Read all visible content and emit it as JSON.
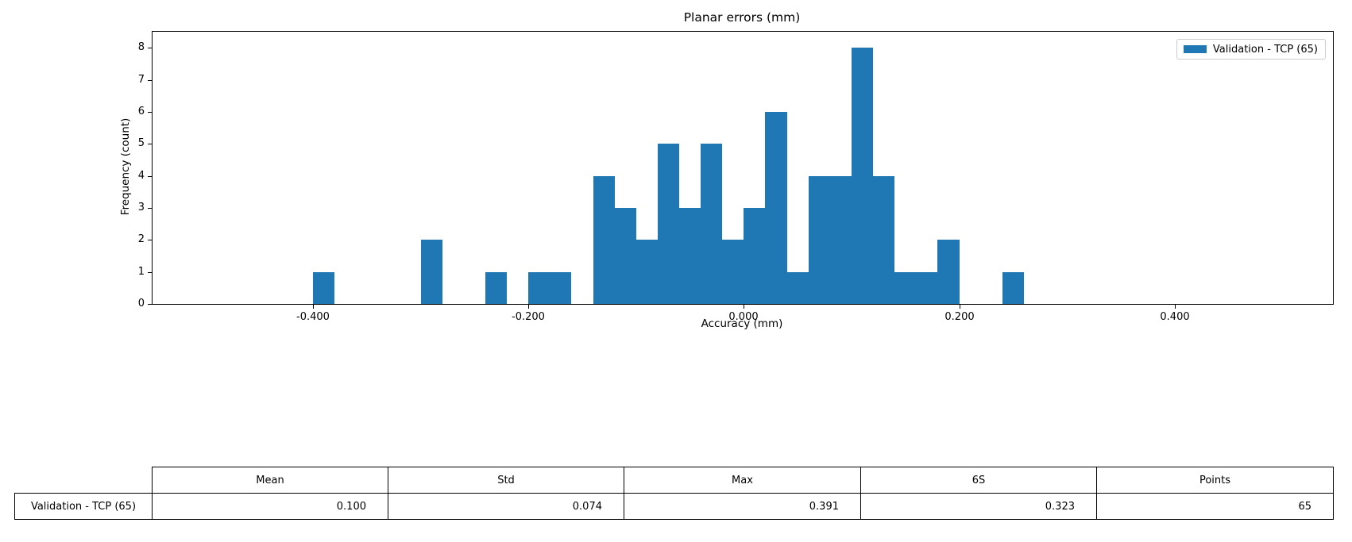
{
  "title": "Planar errors (mm)",
  "chart_data": {
    "type": "bar",
    "subtype": "histogram",
    "title": "Planar errors (mm)",
    "xlabel": "Accuracy (mm)",
    "ylabel": "Frequency (count)",
    "bin_start": -0.4,
    "bin_width": 0.02,
    "counts": [
      1,
      0,
      0,
      0,
      0,
      2,
      0,
      0,
      1,
      0,
      1,
      1,
      0,
      4,
      3,
      2,
      5,
      3,
      5,
      2,
      3,
      6,
      1,
      4,
      4,
      8,
      4,
      1,
      1,
      2,
      0,
      0,
      1
    ],
    "total_points": 65,
    "series_name": "Validation - TCP (65)",
    "bar_color": "#1f77b4",
    "xlim": [
      -0.549,
      0.547
    ],
    "ylim": [
      0,
      8.5
    ],
    "xticks": [
      {
        "value": -0.4,
        "label": "-0.400"
      },
      {
        "value": -0.2,
        "label": "-0.200"
      },
      {
        "value": 0.0,
        "label": "0.000"
      },
      {
        "value": 0.2,
        "label": "0.200"
      },
      {
        "value": 0.4,
        "label": "0.400"
      }
    ],
    "yticks": [
      {
        "value": 0,
        "label": "0"
      },
      {
        "value": 1,
        "label": "1"
      },
      {
        "value": 2,
        "label": "2"
      },
      {
        "value": 3,
        "label": "3"
      },
      {
        "value": 4,
        "label": "4"
      },
      {
        "value": 5,
        "label": "5"
      },
      {
        "value": 6,
        "label": "6"
      },
      {
        "value": 7,
        "label": "7"
      },
      {
        "value": 8,
        "label": "8"
      }
    ],
    "grid": false,
    "legend_position": "upper right"
  },
  "legend": {
    "label": "Validation - TCP (65)",
    "swatch_color": "#1f77b4",
    "border_color": "#cccccc"
  },
  "table": {
    "columns": [
      "Mean",
      "Std",
      "Max",
      "6S",
      "Points"
    ],
    "row_header": "Validation - TCP (65)",
    "values": [
      "0.100",
      "0.074",
      "0.391",
      "0.323",
      "65"
    ]
  },
  "colors": {
    "bar": "#1f77b4",
    "axis": "#000000",
    "background": "#ffffff"
  }
}
